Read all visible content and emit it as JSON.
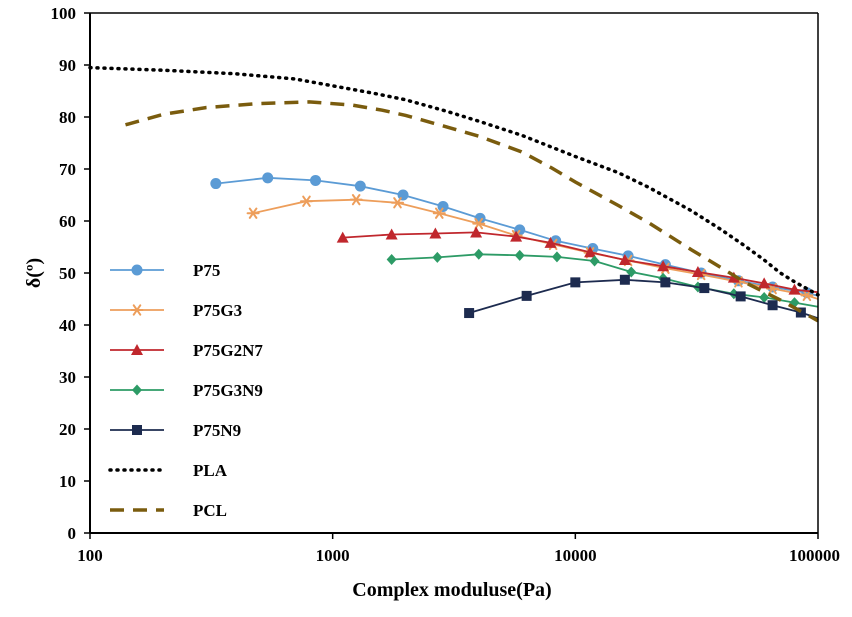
{
  "chart_data": {
    "type": "line",
    "xlabel": "Complex moduluse(Pa)",
    "ylabel": "δ(º)",
    "xscale": "log",
    "xlim": [
      100,
      100000
    ],
    "ylim": [
      0,
      100
    ],
    "x_ticks": [
      100,
      1000,
      10000,
      100000
    ],
    "x_tick_labels": [
      "100",
      "1000",
      "10000",
      "100000"
    ],
    "y_ticks": [
      0,
      10,
      20,
      30,
      40,
      50,
      60,
      70,
      80,
      90,
      100
    ],
    "y_tick_labels": [
      "0",
      "10",
      "20",
      "30",
      "40",
      "50",
      "60",
      "70",
      "80",
      "90",
      "100"
    ],
    "grid": false,
    "legend_position": "left",
    "series": [
      {
        "name": "P75",
        "color": "#5b9bd5",
        "marker": "circle",
        "line": "solid",
        "points": [
          [
            330,
            67.2
          ],
          [
            540,
            68.3
          ],
          [
            850,
            67.8
          ],
          [
            1300,
            66.7
          ],
          [
            1950,
            65.0
          ],
          [
            2850,
            62.8
          ],
          [
            4050,
            60.5
          ],
          [
            5900,
            58.3
          ],
          [
            8300,
            56.2
          ],
          [
            11800,
            54.7
          ],
          [
            16500,
            53.3
          ],
          [
            23500,
            51.6
          ],
          [
            33000,
            50.0
          ],
          [
            47000,
            48.5
          ],
          [
            65000,
            47.3
          ],
          [
            90000,
            46.2
          ],
          [
            100000,
            45.6
          ]
        ]
      },
      {
        "name": "P75G3",
        "color": "#ed9e5b",
        "marker": "star",
        "line": "solid",
        "points": [
          [
            470,
            61.5
          ],
          [
            780,
            63.8
          ],
          [
            1250,
            64.1
          ],
          [
            1850,
            63.5
          ],
          [
            2750,
            61.5
          ],
          [
            4000,
            59.5
          ],
          [
            5700,
            57.2
          ],
          [
            8100,
            55.5
          ],
          [
            11500,
            53.9
          ],
          [
            16500,
            52.4
          ],
          [
            23500,
            50.9
          ],
          [
            33000,
            49.7
          ],
          [
            47000,
            48.3
          ],
          [
            65000,
            47.0
          ],
          [
            90000,
            45.7
          ],
          [
            100000,
            45.0
          ]
        ]
      },
      {
        "name": "P75G2N7",
        "color": "#c0272d",
        "marker": "triangle",
        "line": "solid",
        "points": [
          [
            1100,
            56.8
          ],
          [
            1750,
            57.4
          ],
          [
            2650,
            57.6
          ],
          [
            3900,
            57.8
          ],
          [
            5700,
            57.0
          ],
          [
            7900,
            55.8
          ],
          [
            11500,
            54.0
          ],
          [
            16000,
            52.5
          ],
          [
            23000,
            51.3
          ],
          [
            32000,
            50.2
          ],
          [
            45000,
            49.1
          ],
          [
            60000,
            48.0
          ],
          [
            80000,
            46.8
          ],
          [
            100000,
            46.3
          ]
        ]
      },
      {
        "name": "P75G3N9",
        "color": "#2d9b66",
        "marker": "diamond",
        "line": "solid",
        "points": [
          [
            1750,
            52.6
          ],
          [
            2700,
            53.0
          ],
          [
            4000,
            53.6
          ],
          [
            5900,
            53.4
          ],
          [
            8400,
            53.1
          ],
          [
            12000,
            52.3
          ],
          [
            17000,
            50.2
          ],
          [
            23000,
            49.0
          ],
          [
            32000,
            47.3
          ],
          [
            45000,
            46.0
          ],
          [
            60000,
            45.3
          ],
          [
            80000,
            44.3
          ],
          [
            100000,
            43.5
          ]
        ]
      },
      {
        "name": "P75N9",
        "color": "#1d2b4f",
        "marker": "square",
        "line": "solid",
        "points": [
          [
            3650,
            42.3
          ],
          [
            6300,
            45.6
          ],
          [
            10000,
            48.2
          ],
          [
            16000,
            48.7
          ],
          [
            23500,
            48.2
          ],
          [
            34000,
            47.1
          ],
          [
            48000,
            45.5
          ],
          [
            65000,
            43.8
          ],
          [
            85000,
            42.4
          ],
          [
            100000,
            41.3
          ]
        ]
      },
      {
        "name": "PLA",
        "color": "#000000",
        "marker": "none",
        "line": "dotted",
        "points": [
          [
            100,
            89.5
          ],
          [
            200,
            89.0
          ],
          [
            400,
            88.3
          ],
          [
            700,
            87.3
          ],
          [
            1000,
            86.0
          ],
          [
            1500,
            84.5
          ],
          [
            2000,
            83.3
          ],
          [
            3000,
            81.0
          ],
          [
            4000,
            79.2
          ],
          [
            6000,
            76.5
          ],
          [
            8000,
            74.2
          ],
          [
            10000,
            72.4
          ],
          [
            15000,
            69.3
          ],
          [
            20000,
            66.5
          ],
          [
            30000,
            62.0
          ],
          [
            40000,
            58.3
          ],
          [
            50000,
            55.2
          ],
          [
            60000,
            52.5
          ],
          [
            70000,
            50.0
          ],
          [
            80000,
            48.3
          ],
          [
            100000,
            45.8
          ]
        ]
      },
      {
        "name": "PCL",
        "color": "#7a5c0e",
        "marker": "none",
        "line": "dashed",
        "points": [
          [
            140,
            78.5
          ],
          [
            200,
            80.5
          ],
          [
            300,
            81.8
          ],
          [
            500,
            82.6
          ],
          [
            800,
            82.9
          ],
          [
            1200,
            82.3
          ],
          [
            1600,
            81.3
          ],
          [
            2000,
            80.3
          ],
          [
            3000,
            78.0
          ],
          [
            4000,
            76.3
          ],
          [
            6000,
            73.3
          ],
          [
            8000,
            70.2
          ],
          [
            10000,
            67.5
          ],
          [
            15000,
            63.0
          ],
          [
            20000,
            59.7
          ],
          [
            30000,
            54.5
          ],
          [
            40000,
            51.0
          ],
          [
            50000,
            48.2
          ],
          [
            70000,
            44.8
          ],
          [
            100000,
            40.8
          ]
        ]
      }
    ]
  }
}
